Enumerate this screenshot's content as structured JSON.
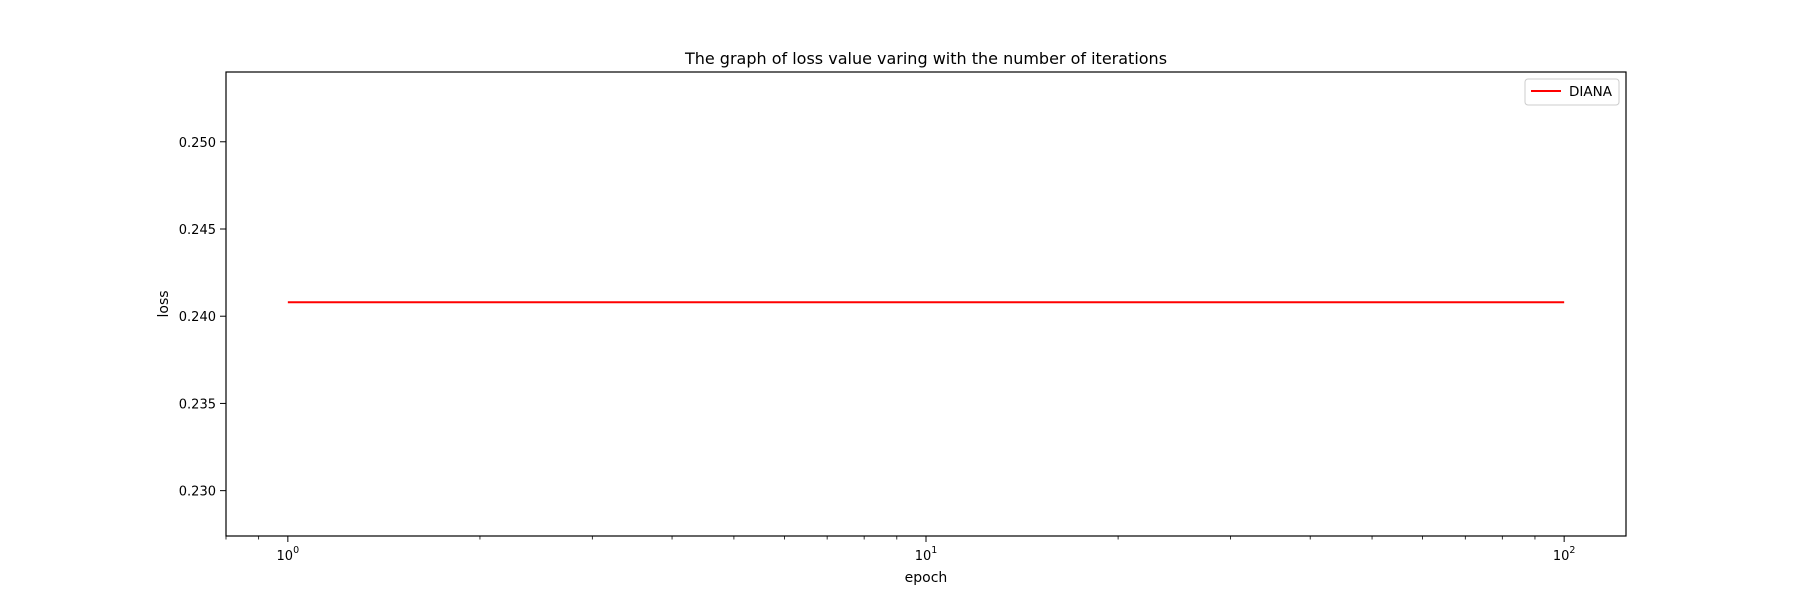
{
  "chart_data": {
    "type": "line",
    "title": "The graph of loss value varing with the number of iterations",
    "xlabel": "epoch",
    "ylabel": "loss",
    "xscale": "log",
    "xlim": [
      0.8,
      125
    ],
    "ylim": [
      0.2274,
      0.254
    ],
    "grid": false,
    "legend_position": "top-right",
    "x_ticks": [
      {
        "value": 1,
        "base": "10",
        "exp": "0"
      },
      {
        "value": 10,
        "base": "10",
        "exp": "1"
      },
      {
        "value": 100,
        "base": "10",
        "exp": "2"
      }
    ],
    "y_ticks": [
      {
        "value": 0.23,
        "label": "0.230"
      },
      {
        "value": 0.235,
        "label": "0.235"
      },
      {
        "value": 0.24,
        "label": "0.240"
      },
      {
        "value": 0.245,
        "label": "0.245"
      },
      {
        "value": 0.25,
        "label": "0.250"
      }
    ],
    "series": [
      {
        "name": "DIANA",
        "color": "#ff0000",
        "x": [
          1,
          100
        ],
        "y": [
          0.2408,
          0.2408
        ]
      }
    ]
  }
}
